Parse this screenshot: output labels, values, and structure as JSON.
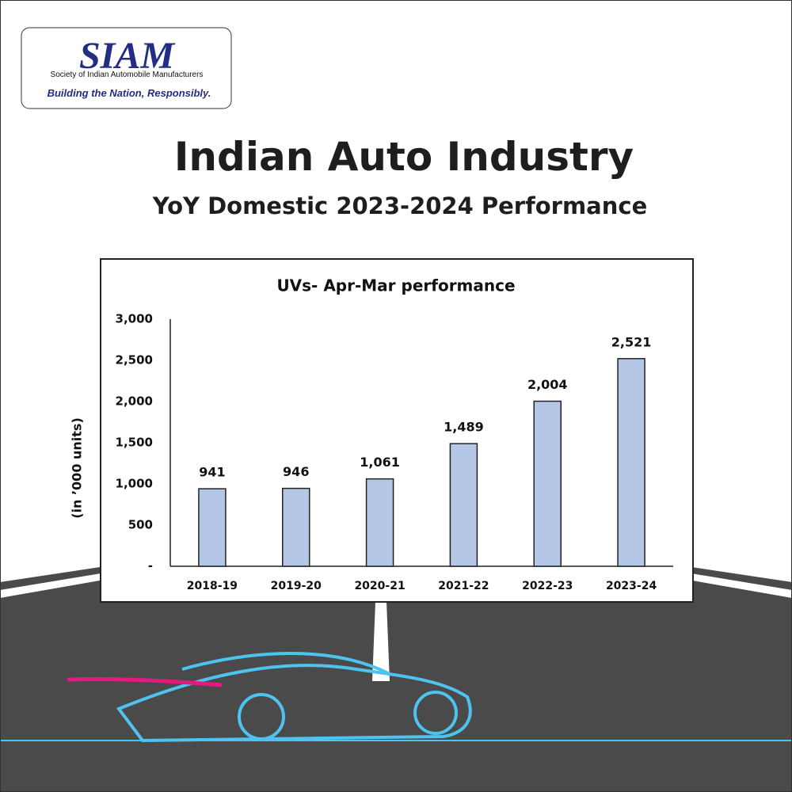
{
  "logo": {
    "name": "SIAM",
    "full_name": "Society of Indian Automobile Manufacturers",
    "tagline": "Building the Nation, Responsibly."
  },
  "header": {
    "title": "Indian Auto Industry",
    "subtitle": "YoY Domestic 2023-2024 Performance"
  },
  "chart_data": {
    "type": "bar",
    "title": "UVs- Apr-Mar performance",
    "y_label": "(in ’000 units)",
    "categories": [
      "2018-19",
      "2019-20",
      "2020-21",
      "2021-22",
      "2022-23",
      "2023-24"
    ],
    "values": [
      941,
      946,
      1061,
      1489,
      2004,
      2521
    ],
    "value_labels": [
      "941",
      "946",
      "1,061",
      "1,489",
      "2,004",
      "2,521"
    ],
    "color": "#b4c7e7",
    "ylim": [
      0,
      3000
    ],
    "yticks": [
      {
        "value": 0,
        "label": "-"
      },
      500,
      {
        "value": 1000,
        "label": "1,000"
      },
      {
        "value": 1500,
        "label": "1,500"
      },
      {
        "value": 2000,
        "label": "2,000"
      },
      {
        "value": 2500,
        "label": "2,500"
      },
      {
        "value": 3000,
        "label": "3,000"
      }
    ],
    "grid": false
  }
}
